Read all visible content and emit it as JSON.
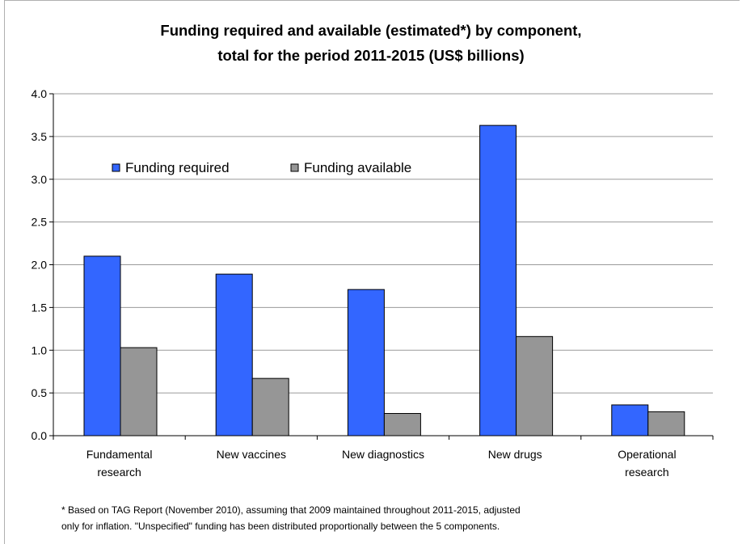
{
  "chart_data": {
    "type": "bar",
    "title_line1": "Funding required and available (estimated*) by component,",
    "title_line2": "total for the period 2011-2015 (US$ billions)",
    "categories": [
      [
        "Fundamental",
        "research"
      ],
      [
        "New vaccines"
      ],
      [
        "New diagnostics"
      ],
      [
        "New drugs"
      ],
      [
        "Operational",
        "research"
      ]
    ],
    "series": [
      {
        "name": "Funding required",
        "color": "#3366ff",
        "values": [
          2.1,
          1.89,
          1.71,
          3.63,
          0.36
        ]
      },
      {
        "name": "Funding available",
        "color": "#969696",
        "values": [
          1.03,
          0.67,
          0.26,
          1.16,
          0.28
        ]
      }
    ],
    "ylim": [
      0,
      4.0
    ],
    "yticks": [
      "0.0",
      "0.5",
      "1.0",
      "1.5",
      "2.0",
      "2.5",
      "3.0",
      "3.5",
      "4.0"
    ],
    "grid": true,
    "legend_position": "top-left inside",
    "footnote_line1": "* Based on TAG Report (November 2010), assuming that 2009 maintained throughout 2011-2015, adjusted",
    "footnote_line2": "only for inflation. \"Unspecified\" funding has been distributed proportionally between the 5 components."
  }
}
